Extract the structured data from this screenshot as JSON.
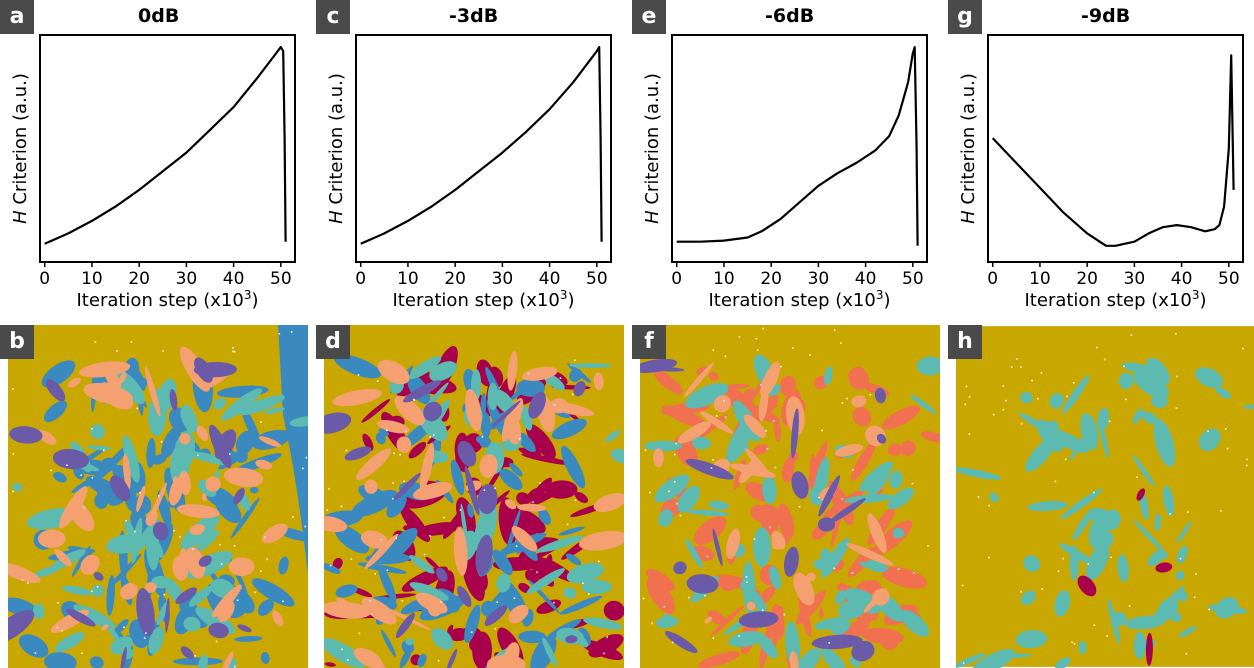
{
  "panels_top": [
    {
      "letter": "a",
      "title": "0dB",
      "ylabel_italic": "H",
      "ylabel_rest": " Criterion (a.u.)",
      "xlabel": "Iteration step (x10",
      "xlabel_sup": "3",
      "xlabel_close": ")"
    },
    {
      "letter": "c",
      "title": "-3dB",
      "ylabel_italic": "H",
      "ylabel_rest": " Criterion (a.u.)",
      "xlabel": "Iteration step (x10",
      "xlabel_sup": "3",
      "xlabel_close": ")"
    },
    {
      "letter": "e",
      "title": "-6dB",
      "ylabel_italic": "H",
      "ylabel_rest": " Criterion (a.u.)",
      "xlabel": "Iteration step (x10",
      "xlabel_sup": "3",
      "xlabel_close": ")"
    },
    {
      "letter": "g",
      "title": "-9dB",
      "ylabel_italic": "H",
      "ylabel_rest": " Criterion (a.u.)",
      "xlabel": "Iteration step (x10",
      "xlabel_sup": "3",
      "xlabel_close": ")"
    }
  ],
  "panels_bottom": [
    {
      "letter": "b"
    },
    {
      "letter": "d"
    },
    {
      "letter": "f"
    },
    {
      "letter": "h"
    }
  ],
  "colors": {
    "olive": "#c8a800",
    "blue": "#3a8ac0",
    "teal": "#5cbab0",
    "salmon": "#f4a070",
    "coral": "#f07050",
    "purple": "#6a5aa8",
    "crimson": "#a8004a"
  },
  "chart_data": [
    {
      "type": "line",
      "title": "0dB",
      "xlabel": "Iteration step (x10^3)",
      "ylabel": "H Criterion (a.u.)",
      "xlim": [
        -1,
        53
      ],
      "ylim": [
        0,
        1
      ],
      "xticks": [
        0,
        10,
        20,
        30,
        40,
        50
      ],
      "x": [
        0,
        5,
        10,
        15,
        20,
        25,
        30,
        35,
        40,
        45,
        48,
        50,
        50.5,
        50.8,
        51
      ],
      "y": [
        0.04,
        0.09,
        0.15,
        0.22,
        0.3,
        0.39,
        0.48,
        0.59,
        0.7,
        0.84,
        0.93,
        0.99,
        0.97,
        0.55,
        0.05
      ]
    },
    {
      "type": "line",
      "title": "-3dB",
      "xlabel": "Iteration step (x10^3)",
      "ylabel": "H Criterion (a.u.)",
      "xlim": [
        -1,
        53
      ],
      "ylim": [
        0,
        1
      ],
      "xticks": [
        0,
        10,
        20,
        30,
        40,
        50
      ],
      "x": [
        0,
        5,
        10,
        15,
        20,
        25,
        30,
        35,
        40,
        45,
        48,
        50,
        50.5,
        50.8,
        51
      ],
      "y": [
        0.04,
        0.09,
        0.15,
        0.22,
        0.3,
        0.39,
        0.48,
        0.58,
        0.69,
        0.82,
        0.91,
        0.97,
        0.99,
        0.55,
        0.05
      ]
    },
    {
      "type": "line",
      "title": "-6dB",
      "xlabel": "Iteration step (x10^3)",
      "ylabel": "H Criterion (a.u.)",
      "xlim": [
        -1,
        53
      ],
      "ylim": [
        0,
        1
      ],
      "xticks": [
        0,
        10,
        20,
        30,
        40,
        50
      ],
      "x": [
        0,
        5,
        10,
        15,
        18,
        22,
        26,
        30,
        34,
        38,
        42,
        45,
        47,
        49,
        50,
        50.4,
        50.8,
        51
      ],
      "y": [
        0.05,
        0.05,
        0.055,
        0.07,
        0.1,
        0.16,
        0.24,
        0.32,
        0.38,
        0.43,
        0.49,
        0.56,
        0.66,
        0.82,
        0.96,
        0.99,
        0.5,
        0.03
      ]
    },
    {
      "type": "line",
      "title": "-9dB",
      "xlabel": "Iteration step (x10^3)",
      "ylabel": "H Criterion (a.u.)",
      "xlim": [
        -1,
        53
      ],
      "ylim": [
        0,
        1
      ],
      "xticks": [
        0,
        10,
        20,
        30,
        40,
        50
      ],
      "x": [
        0,
        5,
        10,
        15,
        20,
        24,
        26,
        28,
        30,
        33,
        36,
        39,
        42,
        45,
        47,
        48,
        49,
        50,
        50.5,
        51
      ],
      "y": [
        0.55,
        0.43,
        0.31,
        0.19,
        0.09,
        0.03,
        0.03,
        0.04,
        0.05,
        0.09,
        0.12,
        0.13,
        0.12,
        0.1,
        0.11,
        0.13,
        0.22,
        0.5,
        0.95,
        0.3
      ]
    }
  ]
}
